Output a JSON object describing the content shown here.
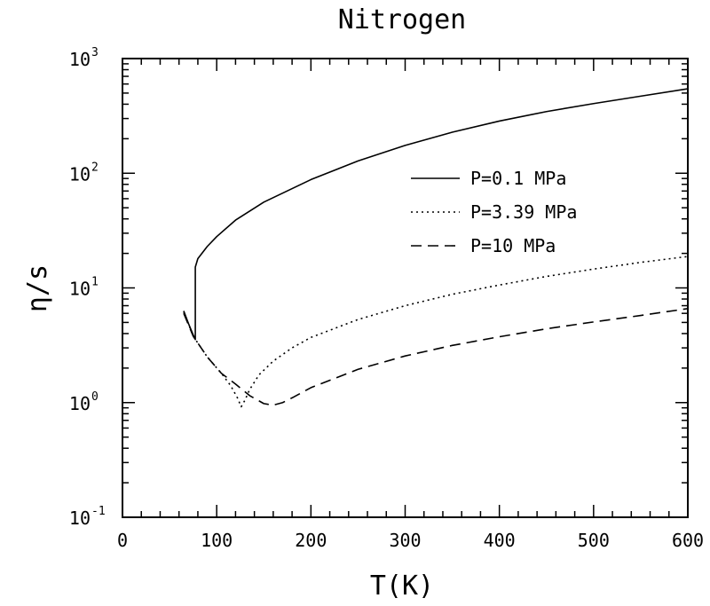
{
  "chart_data": {
    "type": "line",
    "title": "Nitrogen",
    "xlabel": "T(K)",
    "ylabel": "η/s",
    "xlim": [
      0,
      600
    ],
    "ylim": [
      0.1,
      1000
    ],
    "yscale": "log",
    "x_ticks": [
      0,
      100,
      200,
      300,
      400,
      500,
      600
    ],
    "x_tick_labels": [
      "0",
      "100",
      "200",
      "300",
      "400",
      "500",
      "600"
    ],
    "y_ticks": [
      {
        "value": 0.1,
        "base": "10",
        "exp": "-1"
      },
      {
        "value": 1,
        "base": "10",
        "exp": "0"
      },
      {
        "value": 10,
        "base": "10",
        "exp": "1"
      },
      {
        "value": 100,
        "base": "10",
        "exp": "2"
      },
      {
        "value": 1000,
        "base": "10",
        "exp": "3"
      }
    ],
    "grid": false,
    "legend_position": "upper-right",
    "series": [
      {
        "name": "P=0.1 MPa",
        "style": "solid",
        "x": [
          65,
          70,
          75,
          77.3,
          77.3,
          80,
          90,
          100,
          120,
          150,
          200,
          250,
          300,
          350,
          400,
          450,
          500,
          550,
          600
        ],
        "y": [
          6.3,
          4.9,
          3.9,
          3.55,
          15.2,
          18,
          23,
          28,
          39,
          56,
          88,
          128,
          175,
          228,
          285,
          345,
          405,
          470,
          545
        ]
      },
      {
        "name": "P=3.39 MPa",
        "style": "dotted",
        "x": [
          65,
          75,
          90,
          105,
          115,
          122,
          126,
          130,
          135,
          145,
          160,
          180,
          200,
          250,
          300,
          350,
          400,
          450,
          500,
          550,
          600
        ],
        "y": [
          6.2,
          3.8,
          2.5,
          1.8,
          1.4,
          1.1,
          0.92,
          1.05,
          1.3,
          1.75,
          2.3,
          3.0,
          3.7,
          5.3,
          7.0,
          8.8,
          10.6,
          12.6,
          14.6,
          16.7,
          18.8
        ]
      },
      {
        "name": "P=10 MPa",
        "style": "dashed",
        "x": [
          65,
          75,
          90,
          105,
          120,
          135,
          150,
          160,
          170,
          180,
          200,
          250,
          300,
          350,
          400,
          450,
          500,
          550,
          600
        ],
        "y": [
          6.0,
          3.8,
          2.5,
          1.8,
          1.45,
          1.15,
          0.98,
          0.95,
          1.0,
          1.1,
          1.35,
          1.95,
          2.55,
          3.15,
          3.75,
          4.4,
          5.05,
          5.75,
          6.6
        ]
      }
    ]
  }
}
